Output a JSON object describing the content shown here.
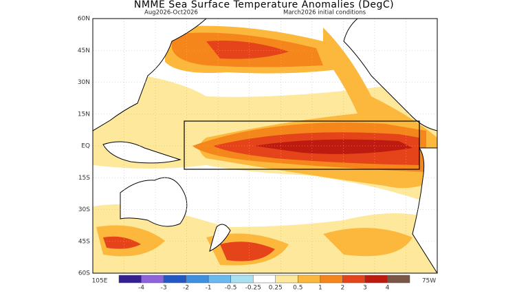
{
  "title": "NMME Sea Surface Temperature Anomalies (DegC)",
  "subtitle_left": "Aug2026-Oct2026",
  "subtitle_right": "March2026 initial conditions",
  "lat_labels": [
    "60N",
    "45N",
    "30N",
    "15N",
    "EQ",
    "15S",
    "30S",
    "45S",
    "60S"
  ],
  "lon_labels": [
    "105E",
    "75W"
  ],
  "colorbar": {
    "levels": [
      -4,
      -3,
      -2,
      -1,
      -0.5,
      -0.25,
      0.25,
      0.5,
      1,
      2,
      3,
      4
    ],
    "colors": [
      "#35208f",
      "#8c63d9",
      "#2358c4",
      "#3f8fe0",
      "#6cb9ee",
      "#a9e1f0",
      "#ffffff",
      "#fde89c",
      "#fbb83c",
      "#f5861c",
      "#e5441a",
      "#bd1a10",
      "#7a5646"
    ]
  }
}
